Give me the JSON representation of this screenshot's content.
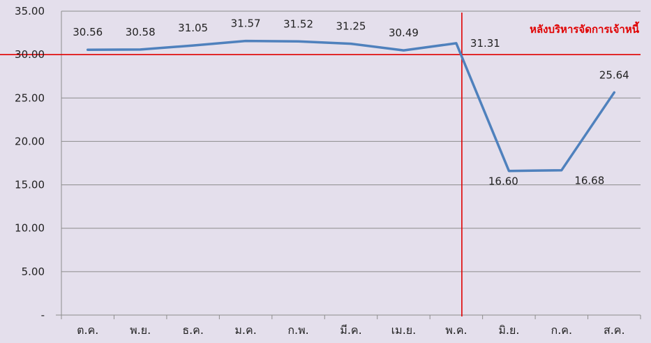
{
  "chart_data": {
    "type": "line",
    "title": "",
    "xlabel": "",
    "ylabel": "",
    "categories": [
      "ต.ค.",
      "พ.ย.",
      "ธ.ค.",
      "ม.ค.",
      "ก.พ.",
      "มี.ค.",
      "เม.ย.",
      "พ.ค.",
      "มิ.ย.",
      "ก.ค.",
      "ส.ค."
    ],
    "values": [
      30.56,
      30.58,
      31.05,
      31.57,
      31.52,
      31.25,
      30.49,
      31.31,
      16.6,
      16.68,
      25.64
    ],
    "data_labels": [
      "30.56",
      "30.58",
      "31.05",
      "31.57",
      "31.52",
      "31.25",
      "30.49",
      "31.31",
      "16.60",
      "16.68",
      "25.64"
    ],
    "ylim": [
      0,
      35
    ],
    "y_ticks": [
      0,
      5,
      10,
      15,
      20,
      25,
      30,
      35
    ],
    "y_tick_labels": [
      "-",
      "5.00",
      "10.00",
      "15.00",
      "20.00",
      "25.00",
      "30.00",
      "35.00"
    ],
    "grid": true,
    "legend": "none",
    "reference_line": {
      "axis": "y",
      "value": 30
    },
    "marker_line": {
      "axis": "x",
      "between": [
        "พ.ค.",
        "มิ.ย."
      ],
      "category": "พ.ค."
    },
    "annotation": "หลังบริหารจัดการเจ้าหนี้",
    "colors": {
      "series": "#4f81bd",
      "reference": "#e00000",
      "annotation": "#e00000",
      "grid": "#8c8c8c",
      "background": "#e4dfec"
    }
  }
}
